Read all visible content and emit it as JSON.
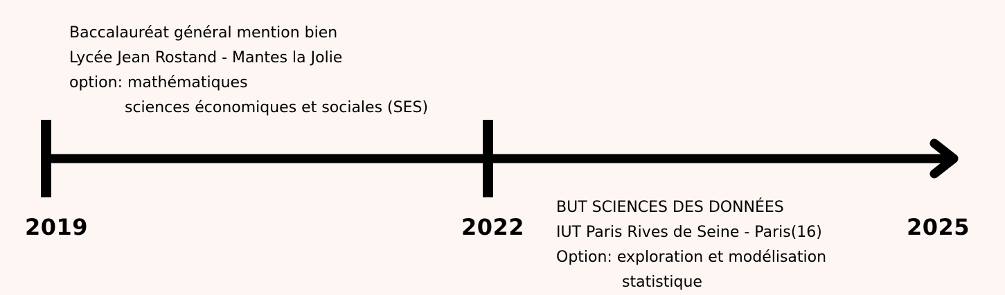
{
  "timeline": {
    "line_color": "#000000",
    "background_color": "#fdf6f3",
    "years": {
      "start": "2019",
      "middle": "2022",
      "end": "2025"
    }
  },
  "milestones": [
    {
      "lines": [
        "Baccalauréat général  mention bien",
        "Lycée Jean Rostand - Mantes la Jolie",
        "option: mathématiques",
        "sciences économiques et sociales (SES)"
      ]
    },
    {
      "lines": [
        "BUT SCIENCES DES DONNÉES",
        "IUT Paris Rives de Seine - Paris(16)",
        "Option: exploration et modélisation",
        "statistique"
      ]
    }
  ]
}
